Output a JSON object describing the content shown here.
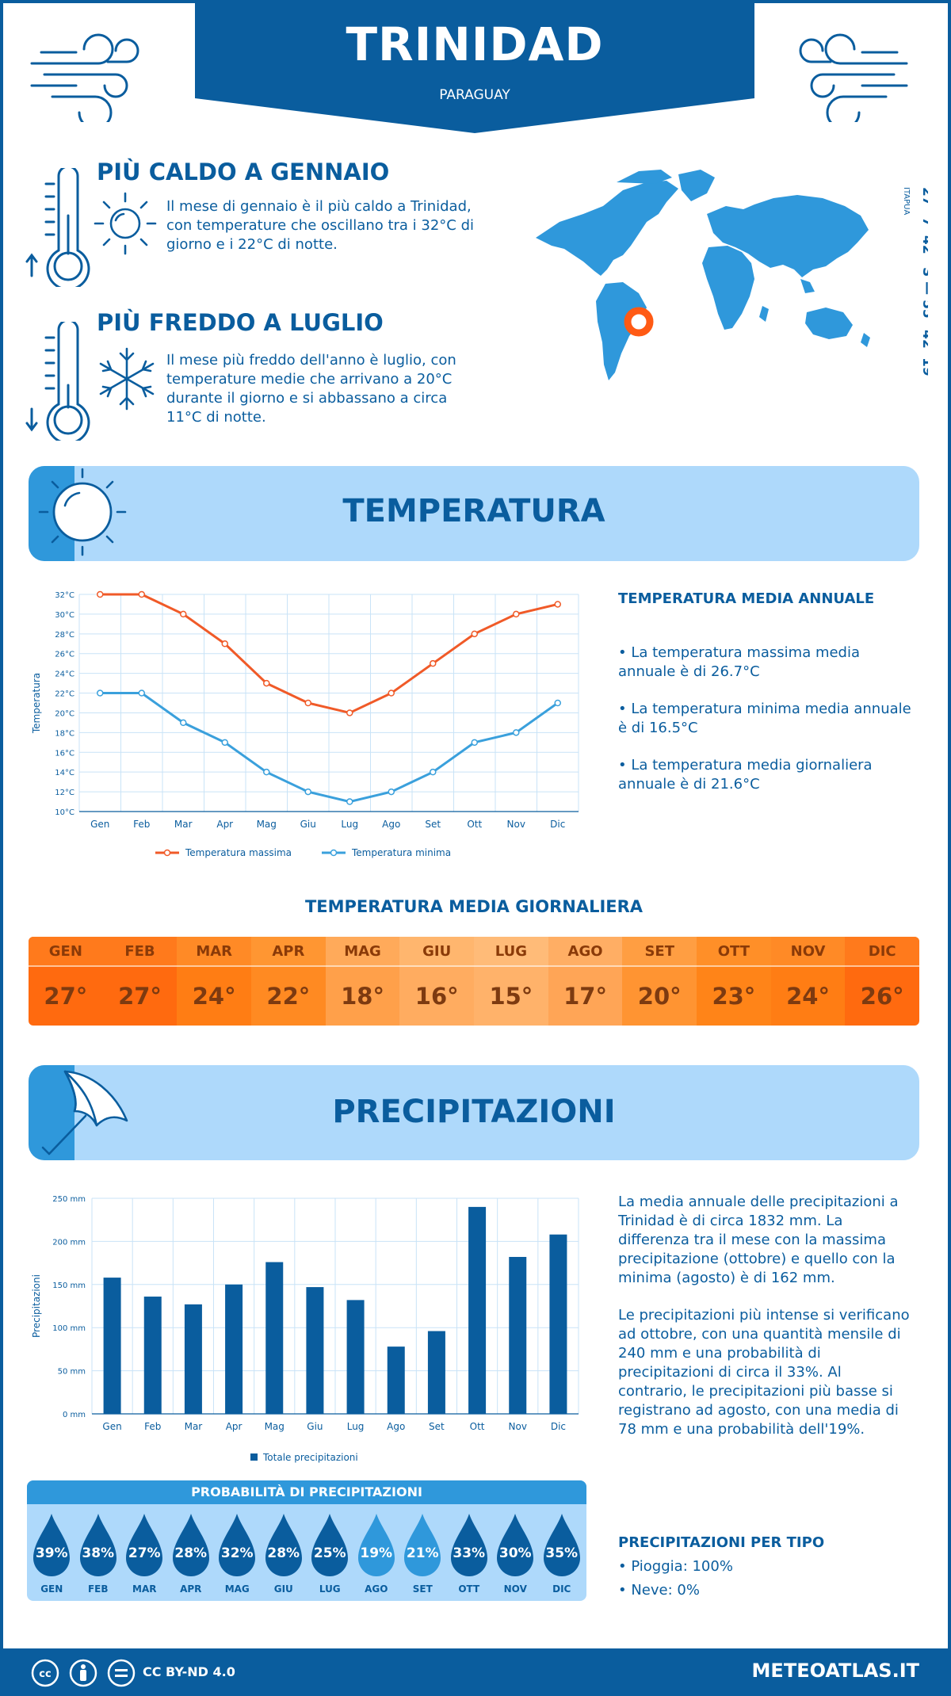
{
  "header": {
    "city": "TRINIDAD",
    "country": "PARAGUAY"
  },
  "coords": {
    "latlon": "27° 7' 42'' S — 55° 42' 19'' W",
    "region": "ITAPUA"
  },
  "hottest": {
    "title": "PIÙ CALDO A GENNAIO",
    "text": "Il mese di gennaio è il più caldo a Trinidad, con temperature che oscillano tra i 32°C di giorno e i 22°C di notte."
  },
  "coldest": {
    "title": "PIÙ FREDDO A LUGLIO",
    "text": "Il mese più freddo dell'anno è luglio, con temperature medie che arrivano a 20°C durante il giorno e si abbassano a circa 11°C di notte."
  },
  "temperature_section": {
    "title": "TEMPERATURA",
    "side_title": "TEMPERATURA MEDIA ANNUALE",
    "bullets": [
      "• La temperatura massima media annuale è di 26.7°C",
      "• La temperatura minima media annuale è di 16.5°C",
      "• La temperatura media giornaliera annuale è di 21.6°C"
    ]
  },
  "daily": {
    "title": "TEMPERATURA MEDIA GIORNALIERA",
    "months": [
      "GEN",
      "FEB",
      "MAR",
      "APR",
      "MAG",
      "GIU",
      "LUG",
      "AGO",
      "SET",
      "OTT",
      "NOV",
      "DIC"
    ],
    "values": [
      "27°",
      "27°",
      "24°",
      "22°",
      "18°",
      "16°",
      "15°",
      "17°",
      "20°",
      "23°",
      "24°",
      "26°"
    ],
    "colors": [
      "#ff6a0f",
      "#ff6a0f",
      "#ff7d14",
      "#ff8a22",
      "#ffa04a",
      "#ffac60",
      "#ffb26a",
      "#ffa556",
      "#ff9432",
      "#ff8418",
      "#ff7d14",
      "#ff6a0f"
    ],
    "head_colors": [
      "#ff7a1c",
      "#ff7a1c",
      "#ff8a26",
      "#ff9632",
      "#ffaa5a",
      "#ffb66e",
      "#ffbb78",
      "#ffae64",
      "#ff9e42",
      "#ff8f28",
      "#ff8a26",
      "#ff7a1c"
    ]
  },
  "precip_section": {
    "title": "PRECIPITAZIONI",
    "text1": "La media annuale delle precipitazioni a Trinidad è di circa 1832 mm. La differenza tra il mese con la massima precipitazione (ottobre) e quello con la minima (agosto) è di 162 mm.",
    "text2": "Le precipitazioni più intense si verificano ad ottobre, con una quantità mensile di 240 mm e una probabilità di precipitazioni di circa il 33%. Al contrario, le precipitazioni più basse si registrano ad agosto, con una media di 78 mm e una probabilità dell'19%."
  },
  "probability": {
    "title": "PROBABILITÀ DI PRECIPITAZIONI",
    "months": [
      "GEN",
      "FEB",
      "MAR",
      "APR",
      "MAG",
      "GIU",
      "LUG",
      "AGO",
      "SET",
      "OTT",
      "NOV",
      "DIC"
    ],
    "values": [
      "39%",
      "38%",
      "27%",
      "28%",
      "32%",
      "28%",
      "25%",
      "19%",
      "21%",
      "33%",
      "30%",
      "35%"
    ]
  },
  "precip_type": {
    "title": "PRECIPITAZIONI PER TIPO",
    "items": [
      "• Pioggia: 100%",
      "• Neve: 0%"
    ]
  },
  "footer": {
    "license": "CC BY-ND 4.0",
    "brand": "METEOATLAS.IT"
  },
  "colors": {
    "primary": "#0a5d9e",
    "light": "#aed9fb",
    "accent": "#2f98db",
    "max_line": "#f05a28",
    "min_line": "#3aa0dc",
    "bars": "#0a5d9e"
  },
  "chart_data": [
    {
      "type": "line",
      "categories": [
        "Gen",
        "Feb",
        "Mar",
        "Apr",
        "Mag",
        "Giu",
        "Lug",
        "Ago",
        "Set",
        "Ott",
        "Nov",
        "Dic"
      ],
      "series": [
        {
          "name": "Temperatura massima",
          "values": [
            32,
            32,
            30,
            27,
            23,
            21,
            20,
            22,
            25,
            28,
            30,
            31
          ]
        },
        {
          "name": "Temperatura minima",
          "values": [
            22,
            22,
            19,
            17,
            14,
            12,
            11,
            12,
            14,
            17,
            18,
            21
          ]
        }
      ],
      "ylabel": "Temperatura",
      "ylim": [
        10,
        32
      ],
      "yticks": [
        "10°C",
        "12°C",
        "14°C",
        "16°C",
        "18°C",
        "20°C",
        "22°C",
        "24°C",
        "26°C",
        "28°C",
        "30°C",
        "32°C"
      ],
      "legend": "bottom"
    },
    {
      "type": "bar",
      "categories": [
        "Gen",
        "Feb",
        "Mar",
        "Apr",
        "Mag",
        "Giu",
        "Lug",
        "Ago",
        "Set",
        "Ott",
        "Nov",
        "Dic"
      ],
      "series": [
        {
          "name": "Totale precipitazioni",
          "values": [
            158,
            136,
            127,
            150,
            176,
            147,
            132,
            78,
            96,
            240,
            182,
            208
          ]
        }
      ],
      "ylabel": "Precipitazioni",
      "ylim": [
        0,
        250
      ],
      "yticks": [
        "0 mm",
        "50 mm",
        "100 mm",
        "150 mm",
        "200 mm",
        "250 mm"
      ],
      "legend": "bottom"
    }
  ]
}
